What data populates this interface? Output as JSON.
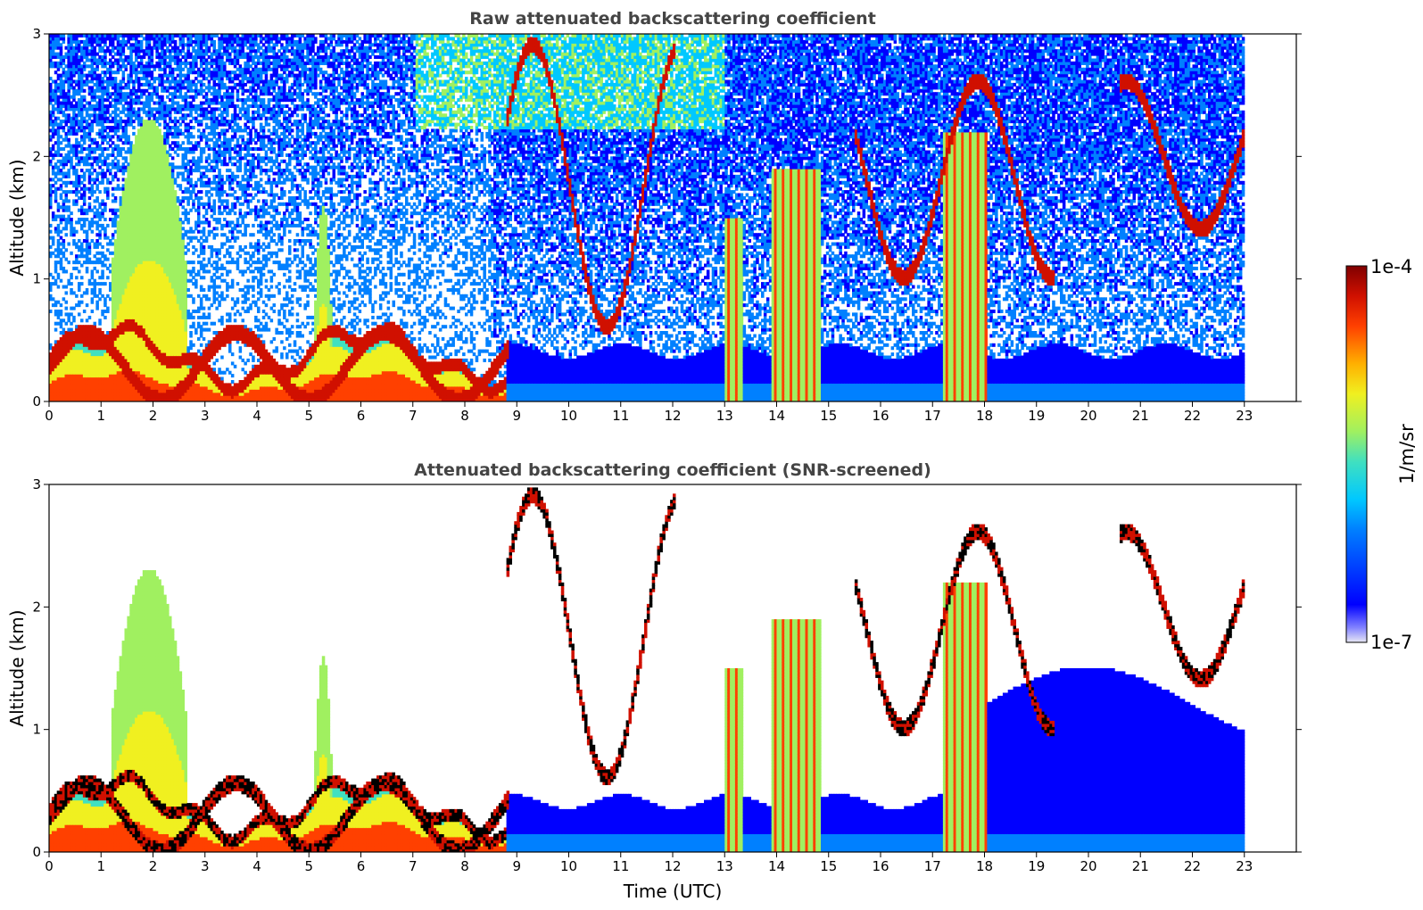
{
  "chart_data": [
    {
      "type": "heatmap",
      "title": "Raw attenuated backscattering coefficient",
      "xlabel": "",
      "ylabel": "Altitude (km)",
      "xlim": [
        0,
        24
      ],
      "ylim": [
        0,
        3
      ],
      "xticks": [
        "0",
        "1",
        "2",
        "3",
        "4",
        "5",
        "6",
        "7",
        "8",
        "9",
        "10",
        "11",
        "12",
        "13",
        "14",
        "15",
        "16",
        "17",
        "18",
        "19",
        "20",
        "21",
        "22",
        "23"
      ],
      "yticks": [
        "0",
        "1",
        "2",
        "3"
      ],
      "data_time_range": [
        0,
        23
      ],
      "features": [
        {
          "label": "boundary layer aerosol",
          "t_start": 0,
          "t_end": 8.8,
          "top_km": 0.55
        },
        {
          "label": "aerosol plume",
          "t_start": 1.2,
          "t_end": 2.6,
          "top_km": 2.3
        },
        {
          "label": "aerosol plume",
          "t_start": 5.1,
          "t_end": 5.4,
          "top_km": 1.6
        },
        {
          "label": "precipitation",
          "t_start": 13.0,
          "t_end": 13.3,
          "top_km": 1.5
        },
        {
          "label": "precipitation",
          "t_start": 13.9,
          "t_end": 14.8,
          "top_km": 1.9
        },
        {
          "label": "precipitation",
          "t_start": 17.2,
          "t_end": 18.0,
          "top_km": 2.2
        },
        {
          "label": "low clouds",
          "t_start": 8.8,
          "t_end": 12.0,
          "base_km": 0.6,
          "top_km": 2.9
        },
        {
          "label": "clouds",
          "t_start": 15.5,
          "t_end": 19.3,
          "base_km": 1.0,
          "top_km": 2.6
        },
        {
          "label": "clouds",
          "t_start": 20.6,
          "t_end": 23.0,
          "base_km": 1.4,
          "top_km": 2.6
        }
      ]
    },
    {
      "type": "heatmap",
      "title": "Attenuated backscattering coefficient (SNR-screened)",
      "xlabel": "Time (UTC)",
      "ylabel": "Altitude (km)",
      "xlim": [
        0,
        24
      ],
      "ylim": [
        0,
        3
      ],
      "xticks": [
        "0",
        "1",
        "2",
        "3",
        "4",
        "5",
        "6",
        "7",
        "8",
        "9",
        "10",
        "11",
        "12",
        "13",
        "14",
        "15",
        "16",
        "17",
        "18",
        "19",
        "20",
        "21",
        "22",
        "23"
      ],
      "yticks": [
        "0",
        "1",
        "2",
        "3"
      ],
      "data_time_range": [
        0,
        23
      ]
    }
  ],
  "colorbar": {
    "label": "1/m/sr",
    "min_label": "1e-7",
    "max_label": "1e-4",
    "scale": "log",
    "range": [
      1e-07,
      0.0001
    ],
    "colormap": [
      "#e8e8f4",
      "#8080ff",
      "#0000ff",
      "#0080ff",
      "#00c8ff",
      "#40e0c0",
      "#a0f060",
      "#f0f020",
      "#ffb000",
      "#ff4000",
      "#d01000",
      "#800000"
    ]
  }
}
